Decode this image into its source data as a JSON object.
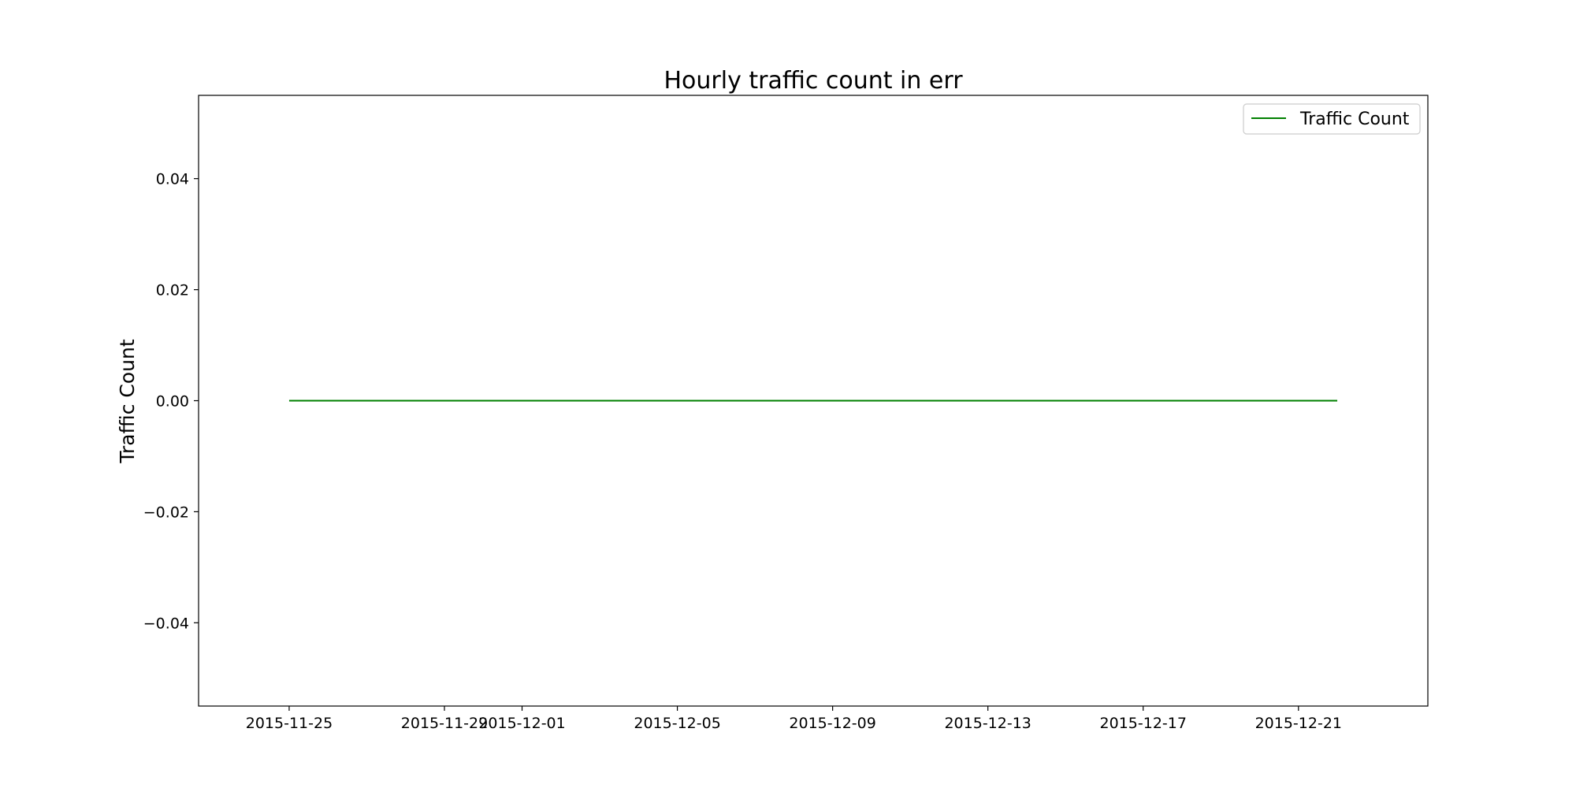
{
  "chart_data": {
    "type": "line",
    "title": "Hourly traffic count in err",
    "xlabel": "",
    "ylabel": "Traffic Count",
    "x_type": "date",
    "xlim": [
      "2015-11-22T16:00",
      "2015-12-24T08:00"
    ],
    "ylim": [
      -0.055,
      0.055
    ],
    "x_ticks": [
      "2015-11-25",
      "2015-11-29",
      "2015-12-01",
      "2015-12-05",
      "2015-12-09",
      "2015-12-13",
      "2015-12-17",
      "2015-12-21"
    ],
    "y_ticks": [
      -0.04,
      -0.02,
      0.0,
      0.02,
      0.04
    ],
    "y_tick_labels": [
      "−0.04",
      "−0.02",
      "0.00",
      "0.02",
      "0.04"
    ],
    "series": [
      {
        "name": "Traffic Count",
        "color": "#008000",
        "x": [
          "2015-11-25T00:00",
          "2015-12-22T00:00"
        ],
        "y": [
          0,
          0
        ]
      }
    ],
    "legend": {
      "position": "top-right"
    },
    "grid": false
  }
}
